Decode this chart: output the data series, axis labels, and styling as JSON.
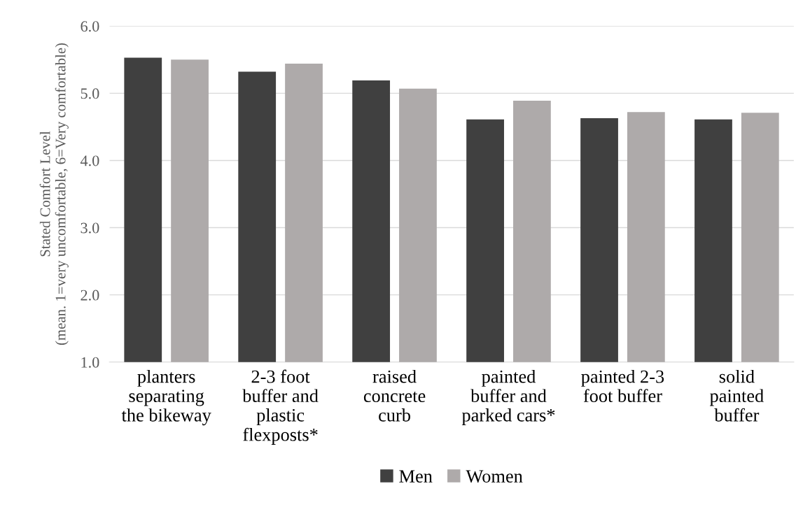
{
  "chart_data": {
    "type": "bar",
    "ylabel": "Stated Comfort Level\n(mean. 1=very uncomfortable, 6=Very comfortable)",
    "categories": [
      "planters\nseparating\nthe bikeway",
      "2-3 foot\nbuffer and\nplastic\nflexposts*",
      "raised\nconcrete\ncurb",
      "painted\nbuffer and\nparked cars*",
      "painted 2-3\nfoot buffer",
      "solid\npainted\nbuffer"
    ],
    "series": [
      {
        "name": "Men",
        "color": "#404040",
        "values": [
          5.53,
          5.32,
          5.19,
          4.61,
          4.63,
          4.61
        ]
      },
      {
        "name": "Women",
        "color": "#aeaaaa",
        "values": [
          5.5,
          5.44,
          5.07,
          4.89,
          4.72,
          4.71
        ]
      }
    ],
    "ylim": [
      1,
      6
    ],
    "yticks": [
      {
        "value": 1,
        "label": "1.0"
      },
      {
        "value": 2,
        "label": "2.0"
      },
      {
        "value": 3,
        "label": "3.0"
      },
      {
        "value": 4,
        "label": "4.0"
      },
      {
        "value": 5,
        "label": "5.0"
      },
      {
        "value": 6,
        "label": "6.0"
      }
    ],
    "grid": "y",
    "legend": "bottom"
  }
}
